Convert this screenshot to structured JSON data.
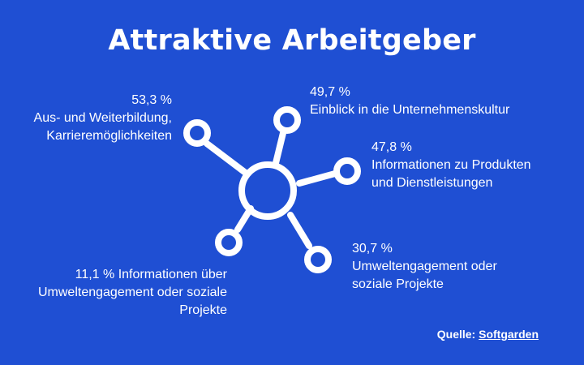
{
  "title": "Attraktive Arbeitgeber",
  "nodes": [
    {
      "id": "tl",
      "value": "53,3 %",
      "lines": [
        "Aus- und Weiterbildung,",
        "Karrieremöglichkeiten"
      ]
    },
    {
      "id": "tr",
      "value": "49,7 %",
      "lines": [
        "Einblick in die Unternehmenskultur"
      ]
    },
    {
      "id": "r",
      "value": "47,8 %",
      "lines": [
        "Informationen zu Produkten",
        "und Dienstleistungen"
      ]
    },
    {
      "id": "br",
      "value": "30,7 %",
      "lines": [
        "Umweltengagement oder",
        "soziale Projekte"
      ]
    },
    {
      "id": "bl",
      "value": "",
      "lines": [
        "11,1 % Informationen über",
        "Umweltengagement oder soziale",
        "Projekte"
      ]
    }
  ],
  "source": {
    "label": "Quelle:",
    "link": "Softgarden"
  },
  "colors": {
    "background": "#1f4fd3",
    "foreground": "#ffffff"
  },
  "icon": "network-hub-icon"
}
